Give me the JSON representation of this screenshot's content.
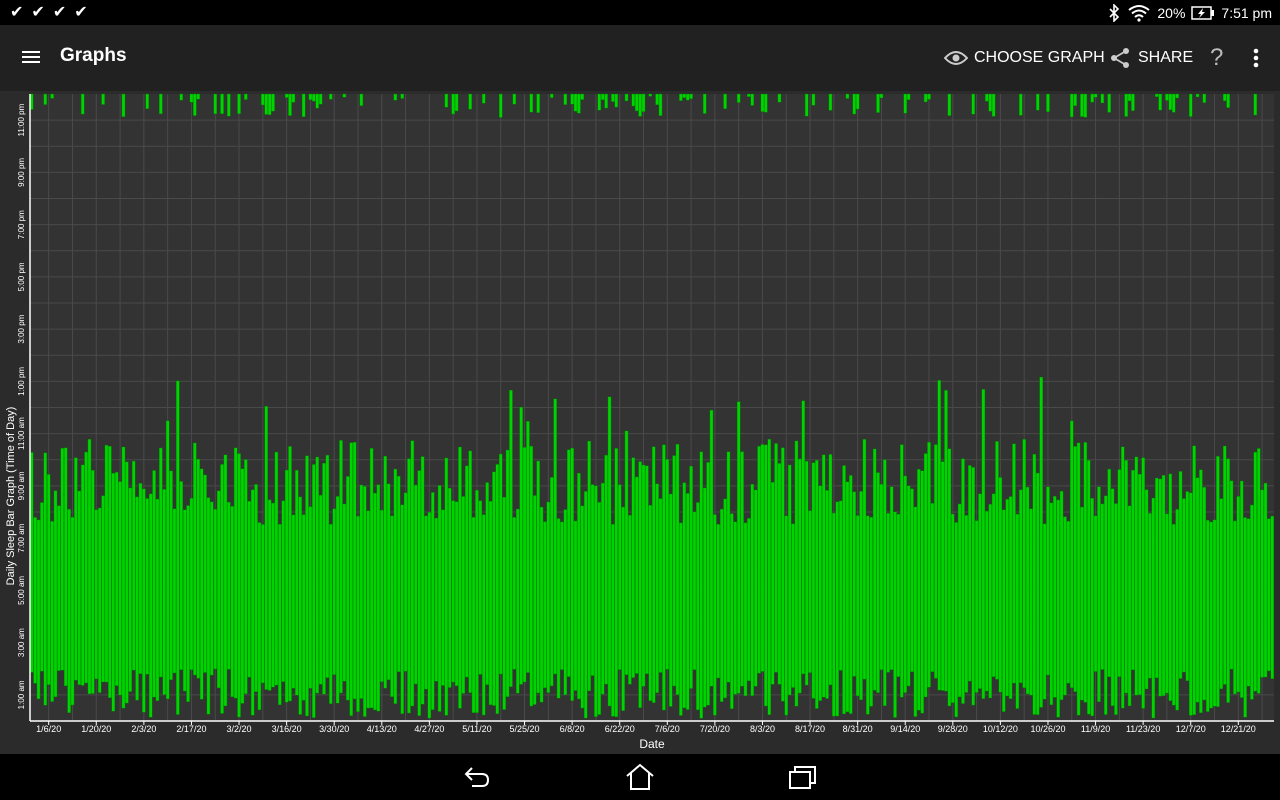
{
  "status_bar": {
    "battery": "20%",
    "time": "7:51 pm",
    "notification_icons": [
      "check-icon",
      "check-icon",
      "check-icon",
      "check-icon"
    ],
    "system_icons": [
      "bluetooth-icon",
      "wifi-icon",
      "battery-charging-icon"
    ]
  },
  "app_bar": {
    "title": "Graphs",
    "choose_graph_label": "CHOOSE GRAPH",
    "share_label": "SHARE",
    "help_label": "?"
  },
  "colors": {
    "bar": "#00d400",
    "bar_edge": "#007a00",
    "plot_bg": "#333333",
    "grid": "#4a4a4a",
    "axis": "#ffffff"
  },
  "chart_data": {
    "type": "bar",
    "subtype": "floating-range",
    "ylabel": "Daily Sleep Bar Graph (Time of Day)",
    "xlabel": "Date",
    "y_tick_labels": [
      "1:00 am",
      "3:00 am",
      "5:00 am",
      "7:00 am",
      "9:00 am",
      "11:00 am",
      "1:00 pm",
      "3:00 pm",
      "5:00 pm",
      "7:00 pm",
      "9:00 pm",
      "11:00 pm"
    ],
    "x_tick_labels": [
      "1/6/20",
      "1/20/20",
      "2/3/20",
      "2/17/20",
      "3/2/20",
      "3/16/20",
      "3/30/20",
      "4/13/20",
      "4/27/20",
      "5/11/20",
      "5/25/20",
      "6/8/20",
      "6/22/20",
      "7/6/20",
      "7/20/20",
      "8/3/20",
      "8/17/20",
      "8/31/20",
      "9/14/20",
      "9/28/20",
      "10/12/20",
      "10/26/20",
      "11/9/20",
      "11/23/20",
      "12/7/20",
      "12/21/20"
    ],
    "x_range": [
      "1/1/20",
      "12/31/20"
    ],
    "ylim_hours": [
      0,
      24
    ],
    "grid": true,
    "series": [
      {
        "values_description": "Each day is one bar: bottom = wake time, top = sleep time (time of day in hours). Nights starting before midnight also show a short bar at the top of the chart (hours 23-24).",
        "typical_start_hours": [
          0.1,
          2.0
        ],
        "typical_end_hours": [
          7.5,
          10.8
        ],
        "max_end_hours": 13.2
      }
    ]
  },
  "nav_bar": {
    "buttons": [
      "back-icon",
      "home-icon",
      "recents-icon"
    ]
  }
}
